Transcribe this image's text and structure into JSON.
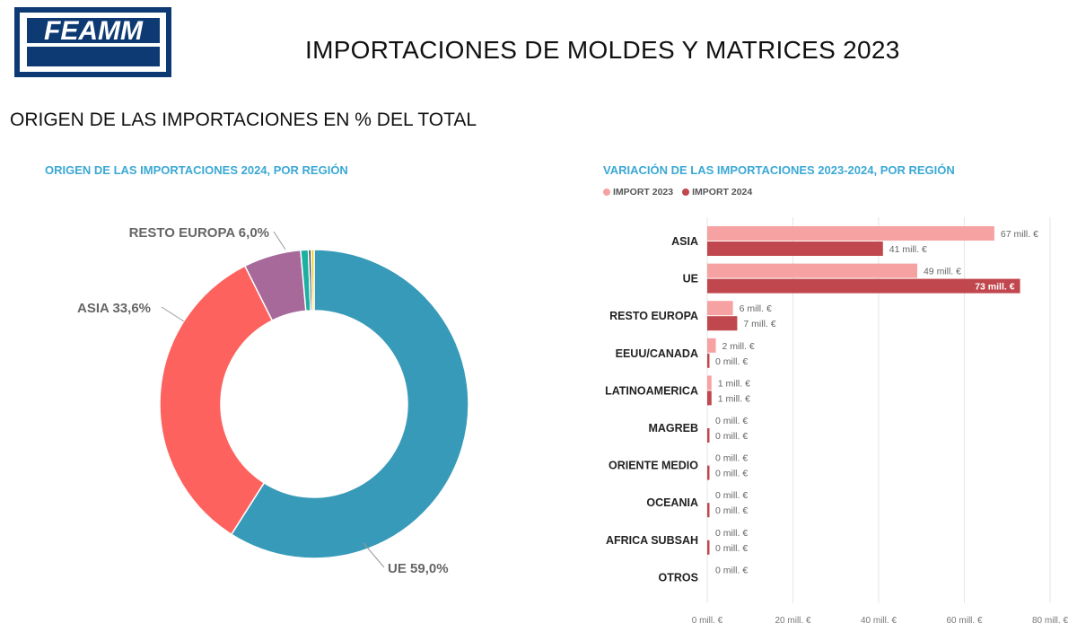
{
  "header": {
    "logo_text": "FEAMM",
    "title": "IMPORTACIONES DE MOLDES Y MATRICES 2023",
    "subtitle": "ORIGEN DE LAS IMPORTACIONES EN % DEL TOTAL"
  },
  "colors": {
    "accent_title": "#3ba8d4",
    "import_2023": "#f7a2a2",
    "import_2024": "#c0474d"
  },
  "chart_data": [
    {
      "type": "pie",
      "title": "ORIGEN DE LAS IMPORTACIONES 2024, POR REGIÓN",
      "slices": [
        {
          "label": "UE 59,0%",
          "value": 59.0,
          "color": "#389ab9"
        },
        {
          "label": "ASIA 33,6%",
          "value": 33.6,
          "color": "#fd625e"
        },
        {
          "label": "RESTO EUROPA 6,0%",
          "value": 6.0,
          "color": "#a66999"
        },
        {
          "label": "",
          "value": 0.8,
          "color": "#1db0a0"
        },
        {
          "label": "",
          "value": 0.3,
          "color": "#374649"
        },
        {
          "label": "",
          "value": 0.3,
          "color": "#f2c80f"
        }
      ]
    },
    {
      "type": "bar",
      "orientation": "horizontal",
      "title": "VARIACIÓN DE LAS IMPORTACIONES 2023-2024, POR REGIÓN",
      "categories": [
        "ASIA",
        "UE",
        "RESTO EUROPA",
        "EEUU/CANADA",
        "LATINOAMERICA",
        "MAGREB",
        "ORIENTE MEDIO",
        "OCEANIA",
        "AFRICA SUBSAH",
        "OTROS"
      ],
      "series": [
        {
          "name": "IMPORT 2023",
          "color": "#f7a2a2",
          "values": [
            67,
            49,
            6,
            2,
            1,
            0,
            0,
            0,
            0,
            0
          ],
          "labels": [
            "67 mill. €",
            "49 mill. €",
            "6 mill. €",
            "2 mill. €",
            "1 mill. €",
            "0 mill. €",
            "0 mill. €",
            "0 mill. €",
            "0 mill. €",
            "0 mill. €"
          ]
        },
        {
          "name": "IMPORT 2024",
          "color": "#c0474d",
          "values": [
            41,
            73,
            7,
            0.3,
            1,
            0.2,
            0.2,
            0.2,
            0.2,
            null
          ],
          "labels": [
            "41 mill. €",
            "73 mill. €",
            "7 mill. €",
            "0 mill. €",
            "1 mill. €",
            "0 mill. €",
            "0 mill. €",
            "0 mill. €",
            "0 mill. €",
            ""
          ]
        }
      ],
      "xlim": [
        0,
        80
      ],
      "xticks": [
        0,
        20,
        40,
        60,
        80
      ],
      "xtick_labels": [
        "0 mill. €",
        "20 mill. €",
        "40 mill. €",
        "60 mill. €",
        "80 mill. €"
      ],
      "grid": true,
      "legend_position": "top-left"
    }
  ]
}
